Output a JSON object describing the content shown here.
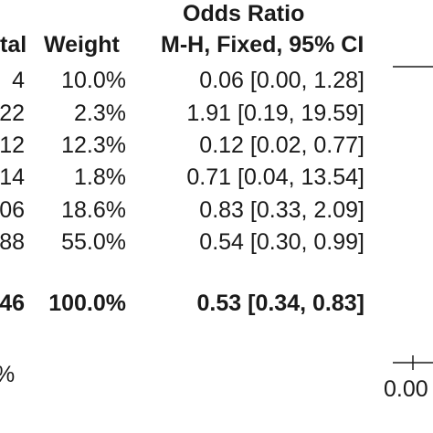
{
  "header": {
    "group_title": "Odds Ratio",
    "col_total": "tal",
    "col_weight": "Weight",
    "col_ci": "M-H, Fixed, 95% CI"
  },
  "rows": [
    {
      "total": "4",
      "weight": "10.0%",
      "ci": "0.06 [0.00, 1.28]"
    },
    {
      "total": "22",
      "weight": "2.3%",
      "ci": "1.91 [0.19, 19.59]"
    },
    {
      "total": "12",
      "weight": "12.3%",
      "ci": "0.12 [0.02, 0.77]"
    },
    {
      "total": "14",
      "weight": "1.8%",
      "ci": "0.71 [0.04, 13.54]"
    },
    {
      "total": "06",
      "weight": "18.6%",
      "ci": "0.83 [0.33, 2.09]"
    },
    {
      "total": "88",
      "weight": "55.0%",
      "ci": "0.54 [0.30, 0.99]"
    }
  ],
  "total_row": {
    "total": "46",
    "weight": "100.0%",
    "ci": "0.53 [0.34, 0.83]"
  },
  "footer": {
    "left_fragment": "%",
    "axis_tick": "0.00"
  },
  "colors": {
    "text": "#1a1a1a",
    "line": "#1a1a1a",
    "background": "#ffffff"
  },
  "chart_data": {
    "type": "table",
    "columns": [
      "tal",
      "Weight",
      "M-H, Fixed, 95% CI"
    ],
    "studies": [
      {
        "weight_pct": 10.0,
        "or": 0.06,
        "ci_low": 0.0,
        "ci_high": 1.28
      },
      {
        "weight_pct": 2.3,
        "or": 1.91,
        "ci_low": 0.19,
        "ci_high": 19.59
      },
      {
        "weight_pct": 12.3,
        "or": 0.12,
        "ci_low": 0.02,
        "ci_high": 0.77
      },
      {
        "weight_pct": 1.8,
        "or": 0.71,
        "ci_low": 0.04,
        "ci_high": 13.54
      },
      {
        "weight_pct": 18.6,
        "or": 0.83,
        "ci_low": 0.33,
        "ci_high": 2.09
      },
      {
        "weight_pct": 55.0,
        "or": 0.54,
        "ci_low": 0.3,
        "ci_high": 0.99
      }
    ],
    "pooled": {
      "weight_pct": 100.0,
      "or": 0.53,
      "ci_low": 0.34,
      "ci_high": 0.83
    },
    "x_tick_labels": [
      "0.00"
    ]
  }
}
